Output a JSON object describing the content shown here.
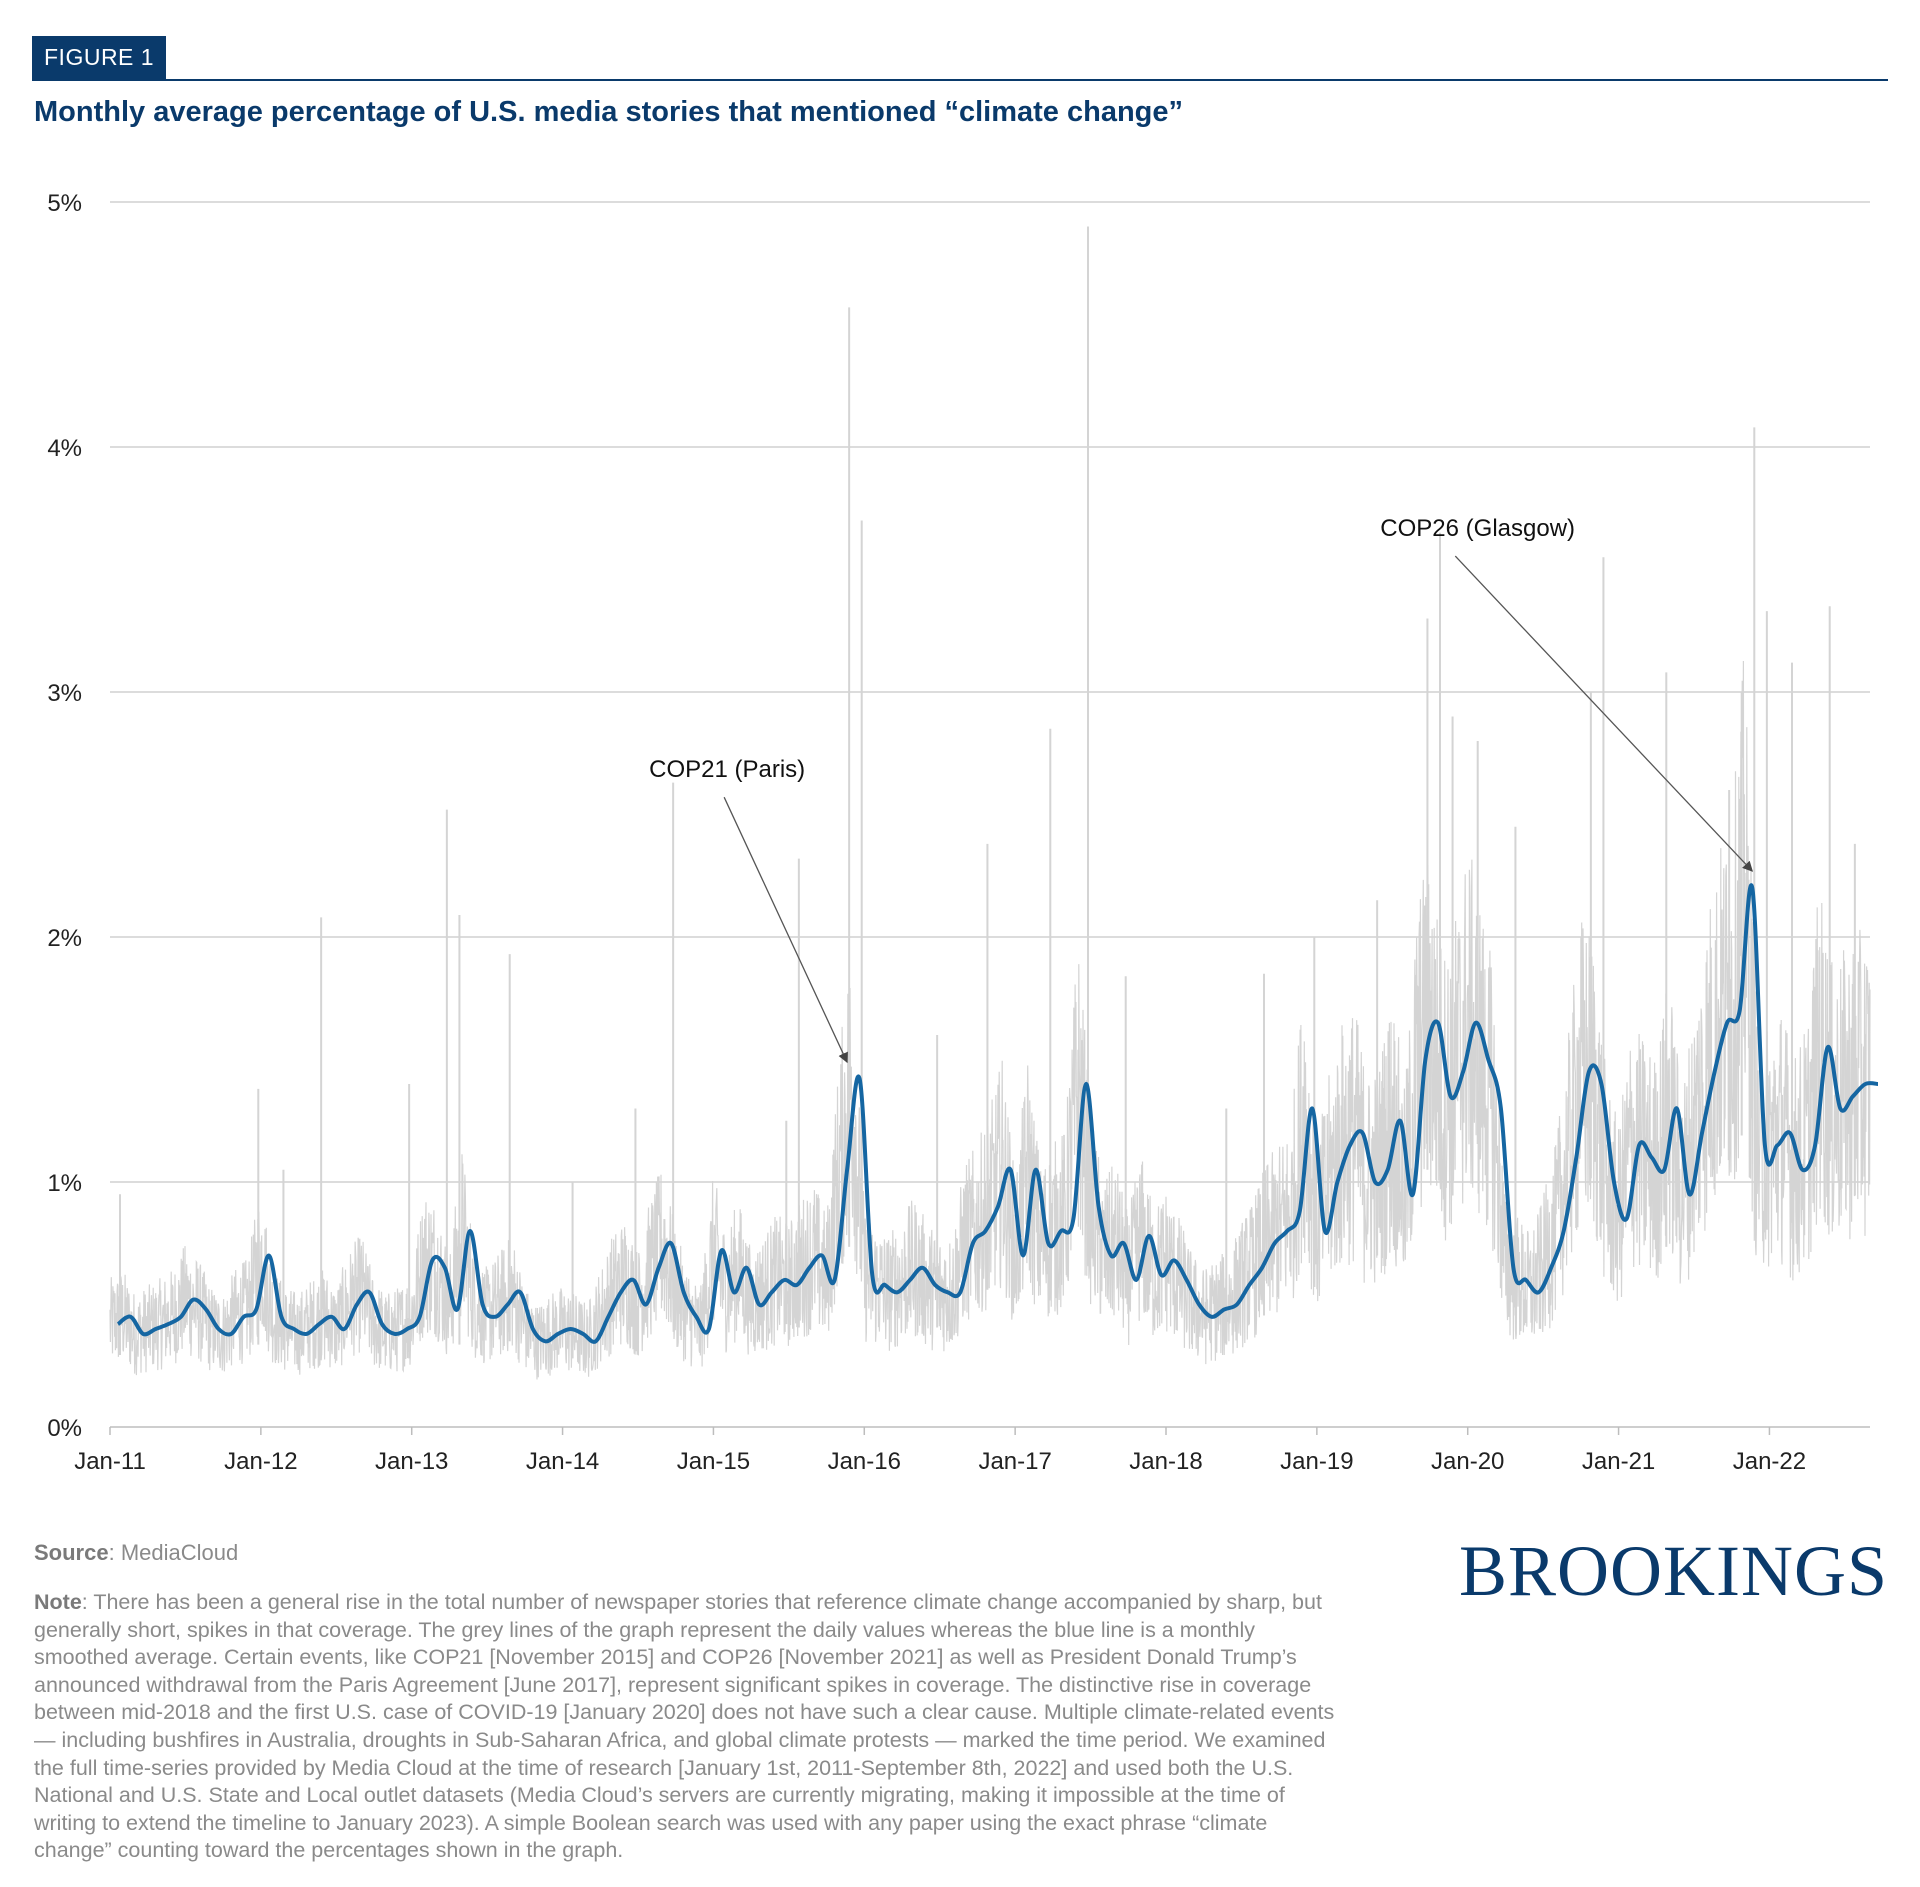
{
  "header": {
    "badge": "FIGURE 1",
    "title": "Monthly average percentage of U.S. media stories that mentioned “climate change”"
  },
  "chart_data": {
    "type": "line",
    "title": "Monthly average percentage of U.S. media stories that mentioned “climate change”",
    "xlabel": "",
    "ylabel": "",
    "y_ticks": [
      "0%",
      "1%",
      "2%",
      "3%",
      "4%",
      "5%"
    ],
    "ylim": [
      0,
      5
    ],
    "x_ticks": [
      "Jan-11",
      "Jan-12",
      "Jan-13",
      "Jan-14",
      "Jan-15",
      "Jan-16",
      "Jan-17",
      "Jan-18",
      "Jan-19",
      "Jan-20",
      "Jan-21",
      "Jan-22"
    ],
    "xlim": [
      "2011-01",
      "2022-09"
    ],
    "grid": "horizontal",
    "colors": {
      "daily": "#d4d4d4",
      "monthly": "#1566a2",
      "grid": "#d0d0d0",
      "annotation": "#555555"
    },
    "series": [
      {
        "style": "daily values (grey)",
        "spikes": [
          [
            "2011-01",
            0.95
          ],
          [
            "2011-12",
            1.38
          ],
          [
            "2012-02",
            1.05
          ],
          [
            "2012-05",
            2.08
          ],
          [
            "2012-12",
            1.4
          ],
          [
            "2013-03",
            2.52
          ],
          [
            "2013-04",
            2.09
          ],
          [
            "2013-08",
            1.93
          ],
          [
            "2014-01",
            1.0
          ],
          [
            "2014-06",
            1.3
          ],
          [
            "2014-09",
            2.63
          ],
          [
            "2015-06",
            1.25
          ],
          [
            "2015-07",
            2.32
          ],
          [
            "2015-11",
            4.57
          ],
          [
            "2015-12",
            3.7
          ],
          [
            "2016-06",
            1.6
          ],
          [
            "2016-10",
            2.38
          ],
          [
            "2017-03",
            2.85
          ],
          [
            "2017-06",
            4.9
          ],
          [
            "2017-09",
            1.84
          ],
          [
            "2018-05",
            1.3
          ],
          [
            "2018-08",
            1.85
          ],
          [
            "2018-12",
            2.0
          ],
          [
            "2019-05",
            2.15
          ],
          [
            "2019-09",
            3.3
          ],
          [
            "2019-10",
            3.65
          ],
          [
            "2019-11",
            2.9
          ],
          [
            "2020-01",
            2.8
          ],
          [
            "2020-04",
            2.45
          ],
          [
            "2020-10",
            3.0
          ],
          [
            "2020-11",
            3.55
          ],
          [
            "2021-04",
            3.08
          ],
          [
            "2021-09",
            2.6
          ],
          [
            "2021-10",
            3.0
          ],
          [
            "2021-11",
            4.08
          ],
          [
            "2021-12",
            3.33
          ],
          [
            "2022-02",
            3.12
          ],
          [
            "2022-05",
            3.35
          ],
          [
            "2022-07",
            2.38
          ]
        ]
      },
      {
        "style": "monthly smoothed average (blue)",
        "x": [
          "2011-01",
          "2011-02",
          "2011-03",
          "2011-04",
          "2011-05",
          "2011-06",
          "2011-07",
          "2011-08",
          "2011-09",
          "2011-10",
          "2011-11",
          "2011-12",
          "2012-01",
          "2012-02",
          "2012-03",
          "2012-04",
          "2012-05",
          "2012-06",
          "2012-07",
          "2012-08",
          "2012-09",
          "2012-10",
          "2012-11",
          "2012-12",
          "2013-01",
          "2013-02",
          "2013-03",
          "2013-04",
          "2013-05",
          "2013-06",
          "2013-07",
          "2013-08",
          "2013-09",
          "2013-10",
          "2013-11",
          "2013-12",
          "2014-01",
          "2014-02",
          "2014-03",
          "2014-04",
          "2014-05",
          "2014-06",
          "2014-07",
          "2014-08",
          "2014-09",
          "2014-10",
          "2014-11",
          "2014-12",
          "2015-01",
          "2015-02",
          "2015-03",
          "2015-04",
          "2015-05",
          "2015-06",
          "2015-07",
          "2015-08",
          "2015-09",
          "2015-10",
          "2015-11",
          "2015-12",
          "2016-01",
          "2016-02",
          "2016-03",
          "2016-04",
          "2016-05",
          "2016-06",
          "2016-07",
          "2016-08",
          "2016-09",
          "2016-10",
          "2016-11",
          "2016-12",
          "2017-01",
          "2017-02",
          "2017-03",
          "2017-04",
          "2017-05",
          "2017-06",
          "2017-07",
          "2017-08",
          "2017-09",
          "2017-10",
          "2017-11",
          "2017-12",
          "2018-01",
          "2018-02",
          "2018-03",
          "2018-04",
          "2018-05",
          "2018-06",
          "2018-07",
          "2018-08",
          "2018-09",
          "2018-10",
          "2018-11",
          "2018-12",
          "2019-01",
          "2019-02",
          "2019-03",
          "2019-04",
          "2019-05",
          "2019-06",
          "2019-07",
          "2019-08",
          "2019-09",
          "2019-10",
          "2019-11",
          "2019-12",
          "2020-01",
          "2020-02",
          "2020-03",
          "2020-04",
          "2020-05",
          "2020-06",
          "2020-07",
          "2020-08",
          "2020-09",
          "2020-10",
          "2020-11",
          "2020-12",
          "2021-01",
          "2021-02",
          "2021-03",
          "2021-04",
          "2021-05",
          "2021-06",
          "2021-07",
          "2021-08",
          "2021-09",
          "2021-10",
          "2021-11",
          "2021-12",
          "2022-01",
          "2022-02",
          "2022-03",
          "2022-04",
          "2022-05",
          "2022-06",
          "2022-07",
          "2022-08",
          "2022-09"
        ],
        "values": [
          0.42,
          0.45,
          0.38,
          0.4,
          0.42,
          0.45,
          0.52,
          0.48,
          0.4,
          0.38,
          0.45,
          0.48,
          0.7,
          0.45,
          0.4,
          0.38,
          0.42,
          0.45,
          0.4,
          0.5,
          0.55,
          0.42,
          0.38,
          0.4,
          0.45,
          0.68,
          0.65,
          0.48,
          0.8,
          0.5,
          0.45,
          0.5,
          0.55,
          0.4,
          0.35,
          0.38,
          0.4,
          0.38,
          0.35,
          0.45,
          0.55,
          0.6,
          0.5,
          0.65,
          0.75,
          0.55,
          0.45,
          0.4,
          0.72,
          0.55,
          0.65,
          0.5,
          0.55,
          0.6,
          0.58,
          0.65,
          0.7,
          0.6,
          1.05,
          1.42,
          0.62,
          0.58,
          0.55,
          0.6,
          0.65,
          0.58,
          0.55,
          0.55,
          0.75,
          0.8,
          0.9,
          1.05,
          0.7,
          1.05,
          0.75,
          0.8,
          0.85,
          1.4,
          0.9,
          0.7,
          0.75,
          0.6,
          0.78,
          0.62,
          0.68,
          0.6,
          0.5,
          0.45,
          0.48,
          0.5,
          0.58,
          0.65,
          0.75,
          0.8,
          0.88,
          1.3,
          0.8,
          1.0,
          1.15,
          1.2,
          1.0,
          1.05,
          1.25,
          0.95,
          1.5,
          1.65,
          1.35,
          1.45,
          1.65,
          1.5,
          1.3,
          0.65,
          0.6,
          0.55,
          0.65,
          0.8,
          1.1,
          1.45,
          1.4,
          1.0,
          0.85,
          1.15,
          1.1,
          1.05,
          1.3,
          0.95,
          1.2,
          1.45,
          1.65,
          1.7,
          2.2,
          1.15,
          1.15,
          1.2,
          1.05,
          1.15,
          1.55,
          1.3,
          1.35,
          1.4,
          1.4
        ]
      }
    ],
    "annotations": [
      {
        "label": "COP21 (Paris)",
        "x": "2015-11",
        "y": 1.44
      },
      {
        "label": "COP26 (Glasgow)",
        "x": "2021-11",
        "y": 2.22
      }
    ]
  },
  "footer": {
    "source_label": "Source",
    "source_text": ": MediaCloud",
    "note_label": "Note",
    "note_text": ": There has been a general rise in the total number of newspaper stories that reference climate change accompanied by sharp, but generally short, spikes in that coverage. The grey lines of the graph represent the daily values whereas the blue line is a monthly smoothed average. Certain events, like COP21 [November 2015] and COP26 [November 2021] as well as President Donald Trump’s announced withdrawal from the Paris Agreement [June 2017], represent significant spikes in coverage. The distinctive rise in coverage between mid-2018 and the first U.S. case of COVID-19 [January 2020] does not have such a clear cause. Multiple climate-related events — including bushfires in Australia, droughts in Sub-Saharan Africa, and global climate protests — marked the time period. We examined the full time-series provided by Media Cloud at the time of research [January 1st, 2011-September 8th, 2022] and used both the U.S. National and U.S. State and Local outlet datasets (Media Cloud’s servers are currently migrating, making it impossible at the time of writing to extend the timeline to January 2023). A simple Boolean search was used with any paper using the exact phrase “climate change” counting toward the percentages shown in the graph.",
    "logo_text": "BROOKINGS"
  }
}
